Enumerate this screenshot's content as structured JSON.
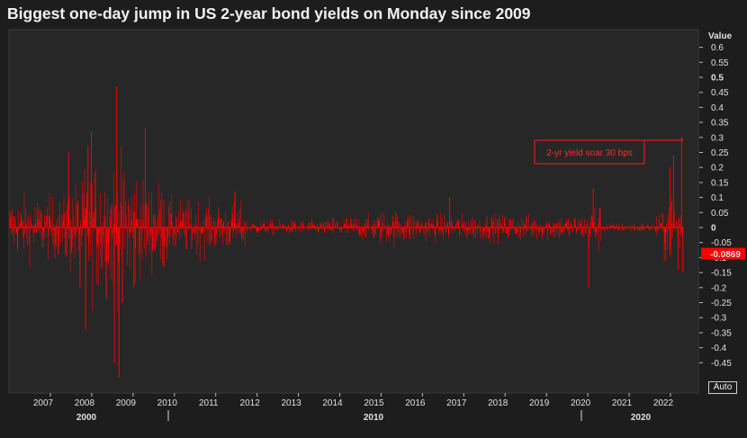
{
  "title": "Biggest one-day jump in US 2-year bond yields on Monday since 2009",
  "controls": {
    "auto_label": "Auto"
  },
  "chart_data": {
    "type": "bar",
    "title": "Biggest one-day jump in US 2-year bond yields on Monday since 2009",
    "xlabel": "",
    "ylabel": "Value",
    "ylim": [
      -0.5,
      0.65
    ],
    "x_range": [
      "2006-03",
      "2022-12"
    ],
    "y_ticks": [
      0.6,
      0.55,
      0.5,
      0.45,
      0.4,
      0.35,
      0.3,
      0.25,
      0.2,
      0.15,
      0.1,
      0.05,
      0,
      -0.05,
      -0.1,
      -0.15,
      -0.2,
      -0.25,
      -0.3,
      -0.35,
      -0.4,
      -0.45
    ],
    "y_tick_labels": [
      "0.6",
      "0.55",
      "0.5",
      "0.45",
      "0.4",
      "0.35",
      "0.3",
      "0.25",
      "0.2",
      "0.15",
      "0.1",
      "0.05",
      "0",
      "-0.05",
      "-0.1",
      "-0.15",
      "-0.2",
      "-0.25",
      "-0.3",
      "-0.35",
      "-0.4",
      "-0.45"
    ],
    "x_tick_labels": [
      "2007",
      "2008",
      "2009",
      "2010",
      "2011",
      "2012",
      "2013",
      "2014",
      "2015",
      "2016",
      "2017",
      "2018",
      "2019",
      "2020",
      "2021",
      "2022"
    ],
    "x_major_labels": [
      "2000",
      "2010",
      "2020"
    ],
    "last_value": -0.0869,
    "last_value_label": "-0.0869",
    "grid": false,
    "color": "#ff0000",
    "annotation": {
      "text": "2-yr yield soar 30 bps",
      "x": "2022-06",
      "y": 0.3
    },
    "series": [
      {
        "values_description_note": null,
        "dates": [
          "2008-11",
          "2008-10",
          "2008-09",
          "2008-03",
          "2008-01",
          "2009-06",
          "2008-12",
          "2007-08",
          "2007-11",
          "2008-02",
          "2009-03",
          "2011-08",
          "2016-11",
          "2020-03",
          "2020-04",
          "2022-04",
          "2022-06",
          "2022-06",
          "2022-03",
          "2022-05"
        ],
        "values": [
          -0.5,
          0.47,
          -0.45,
          0.32,
          -0.34,
          0.33,
          -0.25,
          0.25,
          -0.2,
          0.27,
          -0.2,
          0.12,
          0.1,
          -0.2,
          0.13,
          0.24,
          0.3,
          -0.15,
          0.2,
          -0.14
        ]
      }
    ]
  }
}
